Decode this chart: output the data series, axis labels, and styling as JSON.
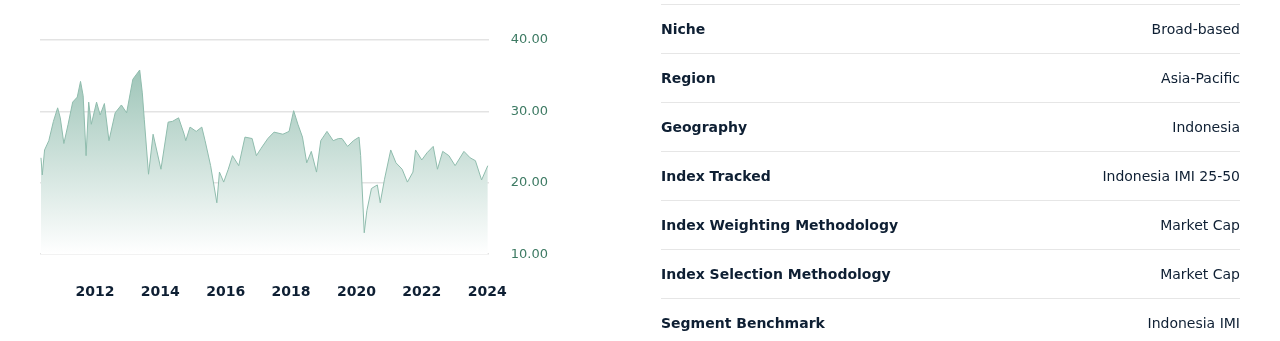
{
  "chart_data": [
    {
      "type": "area",
      "x": [
        2010.35,
        2010.39,
        2010.46,
        2010.59,
        2010.73,
        2010.86,
        2010.94,
        2011.05,
        2011.18,
        2011.32,
        2011.46,
        2011.56,
        2011.64,
        2011.73,
        2011.81,
        2011.89,
        2012.05,
        2012.16,
        2012.29,
        2012.43,
        2012.62,
        2012.81,
        2012.97,
        2013.16,
        2013.37,
        2013.45,
        2013.51,
        2013.64,
        2013.78,
        2014.02,
        2014.24,
        2014.37,
        2014.56,
        2014.73,
        2014.78,
        2014.91,
        2015.1,
        2015.27,
        2015.37,
        2015.54,
        2015.73,
        2015.81,
        2015.94,
        2016.08,
        2016.21,
        2016.4,
        2016.59,
        2016.81,
        2016.94,
        2017.08,
        2017.29,
        2017.48,
        2017.75,
        2017.94,
        2018.08,
        2018.21,
        2018.35,
        2018.48,
        2018.62,
        2018.78,
        2018.91,
        2019.1,
        2019.29,
        2019.45,
        2019.56,
        2019.73,
        2019.91,
        2020.08,
        2020.13,
        2020.24,
        2020.32,
        2020.46,
        2020.64,
        2020.73,
        2020.86,
        2021.05,
        2021.21,
        2021.4,
        2021.56,
        2021.73,
        2021.81,
        2022.0,
        2022.16,
        2022.35,
        2022.48,
        2022.64,
        2022.83,
        2023.02,
        2023.29,
        2023.48,
        2023.64,
        2023.83,
        2024.02
      ],
      "series": [
        {
          "color": "#8fbcad",
          "values": [
            23.5,
            21.1,
            24.6,
            25.9,
            28.6,
            30.5,
            29.1,
            25.5,
            28.2,
            31.3,
            32.0,
            34.2,
            32.2,
            23.8,
            31.3,
            28.2,
            31.3,
            29.5,
            31.1,
            25.9,
            29.8,
            30.9,
            29.8,
            34.5,
            35.8,
            32.6,
            28.9,
            21.2,
            26.8,
            21.9,
            28.5,
            28.6,
            29.1,
            26.8,
            25.9,
            27.8,
            27.2,
            27.8,
            25.9,
            22.4,
            17.2,
            21.5,
            20.1,
            21.9,
            23.8,
            22.4,
            26.4,
            26.2,
            23.8,
            24.8,
            26.2,
            27.1,
            26.8,
            27.2,
            30.1,
            28.2,
            26.4,
            22.8,
            24.4,
            21.5,
            25.9,
            27.2,
            25.9,
            26.2,
            26.2,
            25.1,
            25.9,
            26.4,
            23.8,
            13.0,
            16.1,
            19.2,
            19.7,
            17.2,
            20.5,
            24.6,
            22.8,
            21.9,
            20.1,
            21.5,
            24.6,
            23.2,
            24.2,
            25.1,
            21.9,
            24.4,
            23.8,
            22.4,
            24.4,
            23.5,
            23.1,
            20.4,
            22.4
          ]
        }
      ],
      "xlim": [
        2010.32,
        2024.05
      ],
      "xticks": [
        2012,
        2014,
        2016,
        2018,
        2020,
        2022,
        2024
      ],
      "ylim": [
        10,
        40
      ],
      "yticks": [
        {
          "value": 10,
          "label": "10.00"
        },
        {
          "value": 20,
          "label": "20.00"
        },
        {
          "value": 30,
          "label": "30.00"
        },
        {
          "value": 40,
          "label": "40.00"
        }
      ],
      "grid": "y"
    },
    {
      "type": "other",
      "categories": [
        "Niche",
        "Region",
        "Geography",
        "Index Tracked",
        "Index Weighting Methodology",
        "Index Selection Methodology",
        "Segment Benchmark"
      ],
      "value_labels": [
        "Broad-based",
        "Asia-Pacific",
        "Indonesia",
        "Indonesia IMI 25-50",
        "Market Cap",
        "Market Cap",
        "Indonesia IMI"
      ]
    }
  ]
}
